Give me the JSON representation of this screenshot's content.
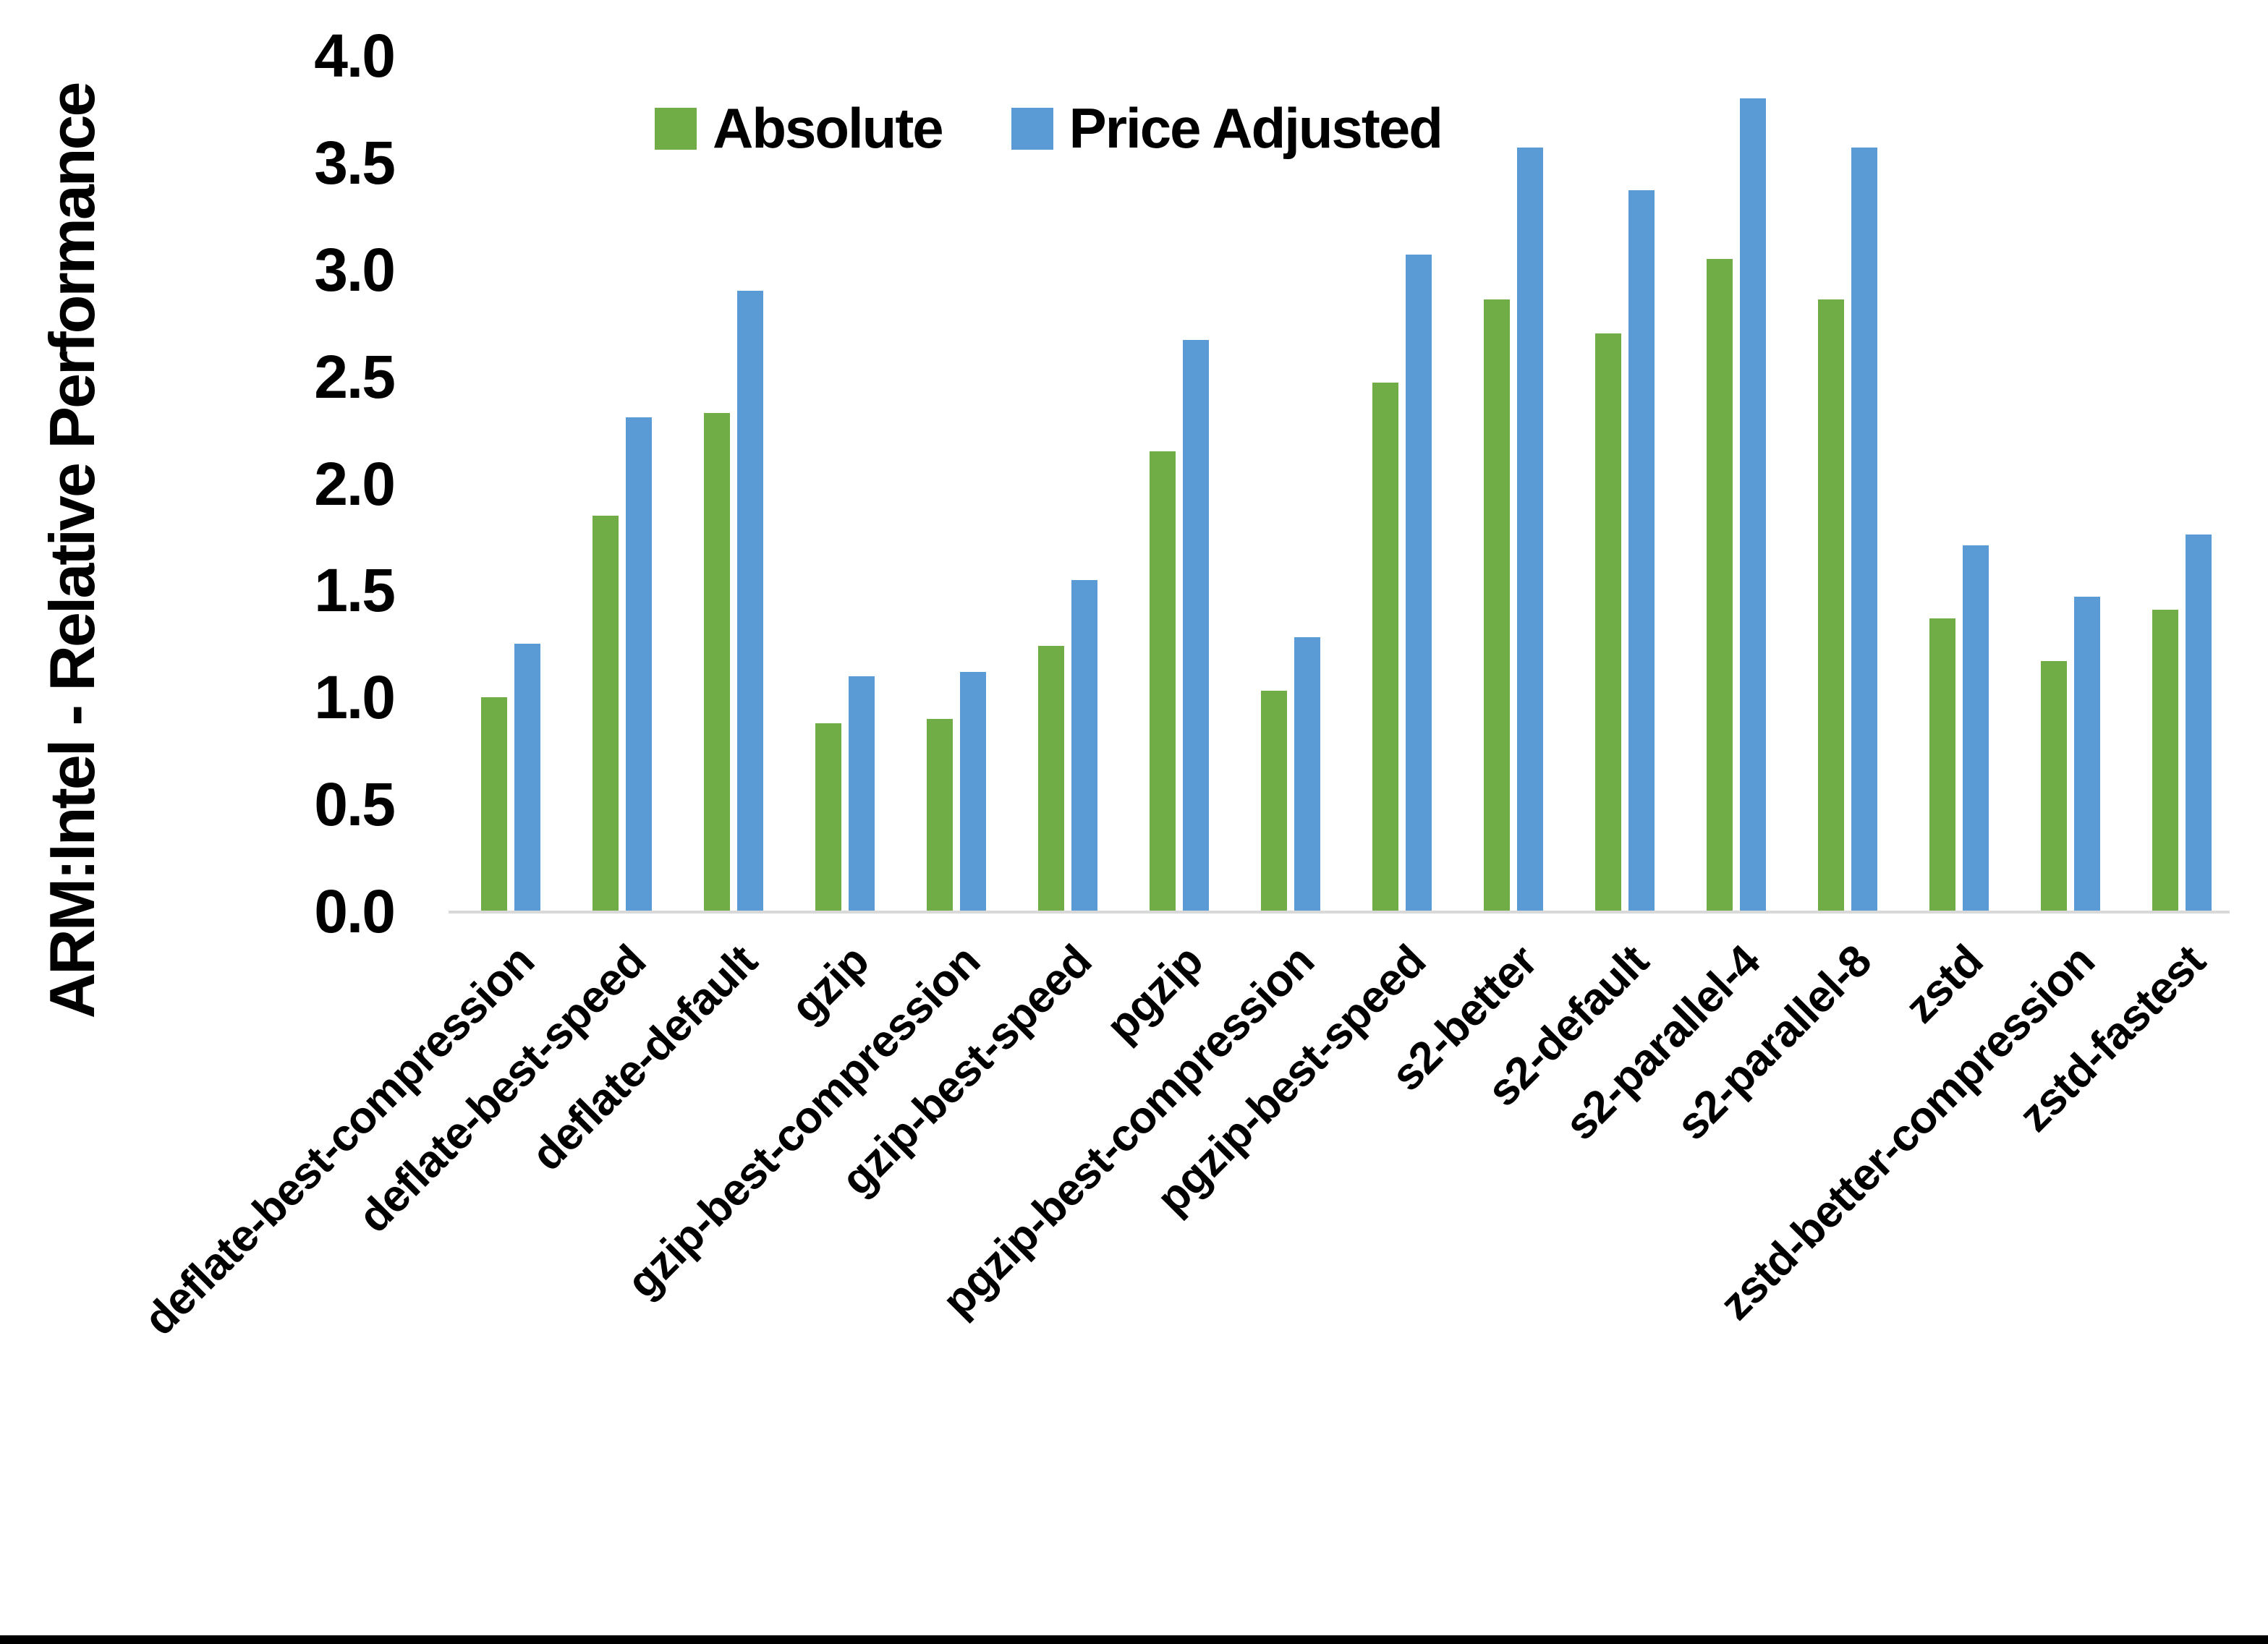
{
  "figure": {
    "background": "#FFFFFF",
    "bottom_border_color": "#000000"
  },
  "axis": {
    "line_color": "#D9D9D9",
    "tick_labels": [
      "0.0",
      "0.5",
      "1.0",
      "1.5",
      "2.0",
      "2.5",
      "3.0",
      "3.5",
      "4.0"
    ]
  },
  "chart_data": {
    "type": "bar",
    "title": "",
    "xlabel": "",
    "ylabel": "ARM:Intel - Relative Performance",
    "ylim": [
      0.0,
      4.0
    ],
    "ytick_interval": 0.5,
    "grid": false,
    "legend_position": "top-center",
    "categories": [
      "deflate-best-compression",
      "deflate-best-speed",
      "deflate-default",
      "gzip",
      "gzip-best-compression",
      "gzip-best-speed",
      "pgzip",
      "pgzip-best-compression",
      "pgzip-best-speed",
      "s2-better",
      "s2-default",
      "s2-parallel-4",
      "s2-parallel-8",
      "zstd",
      "zstd-better-compression",
      "zstd-fastest"
    ],
    "series": [
      {
        "name": "Absolute",
        "color": "#70AD47",
        "values": [
          1.0,
          1.85,
          2.33,
          0.88,
          0.9,
          1.24,
          2.15,
          1.03,
          2.47,
          2.86,
          2.7,
          3.05,
          2.86,
          1.37,
          1.17,
          1.41
        ]
      },
      {
        "name": "Price Adjusted",
        "color": "#5B9BD5",
        "values": [
          1.25,
          2.31,
          2.9,
          1.1,
          1.12,
          1.55,
          2.67,
          1.28,
          3.07,
          3.57,
          3.37,
          3.8,
          3.57,
          1.71,
          1.47,
          1.76
        ]
      }
    ]
  }
}
